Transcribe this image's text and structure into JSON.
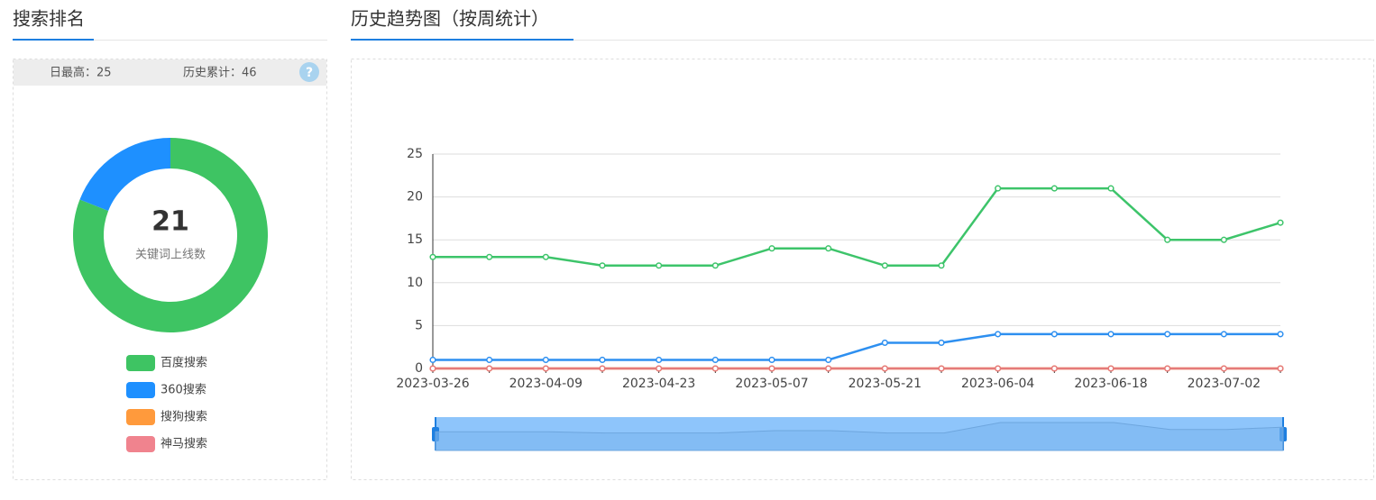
{
  "left_header": {
    "title": "搜索排名"
  },
  "right_header": {
    "title": "历史趋势图（按周统计）"
  },
  "stats": {
    "daily_max": "日最高：25",
    "total": "历史累计：46",
    "help": "?"
  },
  "chart_data": [
    {
      "type": "pie",
      "center_value": 21,
      "center_label": "关键词上线数",
      "categories": [
        "百度搜索",
        "360搜索",
        "搜狗搜索",
        "神马搜索"
      ],
      "values": [
        17,
        4,
        0,
        0
      ],
      "colors": [
        "#3ec463",
        "#1e90ff",
        "#ff9a3c",
        "#f0838e"
      ]
    },
    {
      "type": "line",
      "categories": [
        "2023-03-26",
        null,
        "2023-04-09",
        null,
        "2023-04-23",
        null,
        "2023-05-07",
        null,
        "2023-05-21",
        null,
        "2023-06-04",
        null,
        "2023-06-18",
        null,
        "2023-07-02",
        null
      ],
      "series": [
        {
          "name": "百度搜索",
          "color": "#3dc46a",
          "values": [
            13,
            13,
            13,
            12,
            12,
            12,
            14,
            14,
            12,
            12,
            21,
            21,
            21,
            15,
            15,
            17
          ]
        },
        {
          "name": "360搜索",
          "color": "#2d8ff0",
          "values": [
            1,
            1,
            1,
            1,
            1,
            1,
            1,
            1,
            3,
            3,
            4,
            4,
            4,
            4,
            4,
            4
          ]
        },
        {
          "name": "搜狗搜索",
          "color": "#ff9a3c",
          "values": [
            0,
            0,
            0,
            0,
            0,
            0,
            0,
            0,
            0,
            0,
            0,
            0,
            0,
            0,
            0,
            0
          ]
        },
        {
          "name": "神马搜索",
          "color": "#e57a7a",
          "values": [
            0,
            0,
            0,
            0,
            0,
            0,
            0,
            0,
            0,
            0,
            0,
            0,
            0,
            0,
            0,
            0
          ]
        }
      ],
      "ylim": [
        0,
        25
      ],
      "yticks": [
        0,
        5,
        10,
        15,
        20,
        25
      ],
      "grid": true
    }
  ]
}
